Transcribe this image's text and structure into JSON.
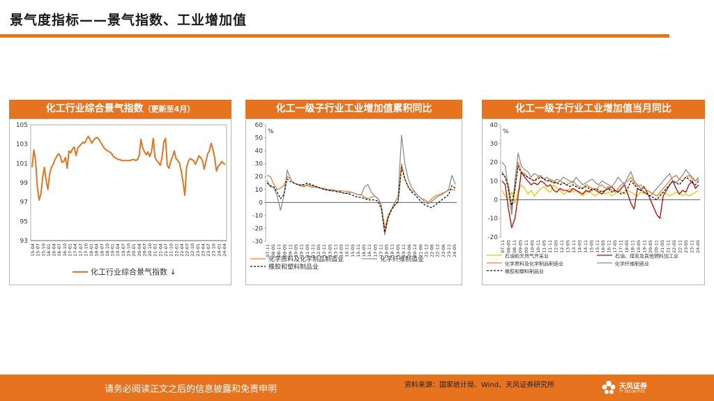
{
  "page": {
    "title": "景气度指标——景气指数、工业增加值",
    "footer_note": "请务必阅读正文之后的信息披露和免责申明",
    "source": "资料来源：国家统计局、Wind、天风证券研究所",
    "logo_text": "天风证券",
    "logo_sub": "TF SECURITIES",
    "accent_color": "#e8731f"
  },
  "chart_data": [
    {
      "type": "line",
      "title": "化工行业综合景气指数",
      "title_note": "（更新至4月）",
      "ylim": [
        93,
        105
      ],
      "yticks": [
        "105",
        "103",
        "101",
        "99",
        "97",
        "95",
        "93"
      ],
      "xticks": [
        "15-04",
        "15-07",
        "15-10",
        "16-01",
        "16-04",
        "16-07",
        "16-10",
        "17-01",
        "17-04",
        "17-07",
        "17-10",
        "18-01",
        "18-04",
        "18-07",
        "18-10",
        "19-01",
        "19-04",
        "19-07",
        "19-10",
        "20-01",
        "20-04",
        "20-07",
        "20-10",
        "21-01",
        "21-04",
        "21-07",
        "21-10",
        "22-01",
        "22-04",
        "22-07",
        "22-10",
        "23-01",
        "23-04",
        "23-07",
        "23-10",
        "24-01",
        "24-04"
      ],
      "series": [
        {
          "name": "化工行业综合景气指数",
          "legend_suffix": "↓",
          "color": "#e8731f",
          "values": [
            100.6,
            102.4,
            101.3,
            98.5,
            97.2,
            97.8,
            99.5,
            100.6,
            99.3,
            98.3,
            99.9,
            100.6,
            100.9,
            101.4,
            101.7,
            102.0,
            101.8,
            101.1,
            101.2,
            101.6,
            100.5,
            102.3,
            102.1,
            102.5,
            102.7,
            101.8,
            102.6,
            102.8,
            103.0,
            103.2,
            103.1,
            103.5,
            103.8,
            103.5,
            103.1,
            103.4,
            103.6,
            103.7,
            103.5,
            103.2,
            102.9,
            102.6,
            102.4,
            102.3,
            102.2,
            102.1,
            101.8,
            101.6,
            101.5,
            101.4,
            101.4,
            101.3,
            101.3,
            101.3,
            101.3,
            101.3,
            101.3,
            101.4,
            101.4,
            101.3,
            101.4,
            101.8,
            103.5,
            102.6,
            102.2,
            101.9,
            102.2,
            101.7,
            102.2,
            103.6,
            101.6,
            101.3,
            101.1,
            100.8,
            101.6,
            103.2,
            103.6,
            100.8,
            100.5,
            101.2,
            101.7,
            102.3,
            101.5,
            101.3,
            101.0,
            100.2,
            99.0,
            97.7,
            100.6,
            101.2,
            101.5,
            101.4,
            101.3,
            100.9,
            101.3,
            101.8,
            101.6,
            101.3,
            100.4,
            101.2,
            102.0,
            102.3,
            103.1,
            102.4,
            101.6,
            100.2,
            100.7,
            100.9,
            101.2,
            101.0,
            100.9
          ]
        }
      ]
    },
    {
      "type": "line",
      "title": "化工一级子行业工业增加值累积同比",
      "yunit": "%",
      "ylim": [
        -30,
        60
      ],
      "yticks": [
        "60",
        "50",
        "40",
        "30",
        "20",
        "10",
        "0",
        "-10",
        "-20",
        "-30"
      ],
      "xticks": [
        "07-11",
        "08-05",
        "08-11",
        "09-05",
        "09-11",
        "10-05",
        "10-11",
        "11-05",
        "11-11",
        "12-05",
        "12-11",
        "13-05",
        "13-11",
        "14-05",
        "14-11",
        "15-05",
        "15-11",
        "16-05",
        "16-11",
        "17-05",
        "17-11",
        "18-05",
        "18-11",
        "19-05",
        "19-11",
        "20-06",
        "20-12",
        "21-06",
        "21-12",
        "22-06",
        "22-12",
        "23-06",
        "23-11",
        "24-05"
      ],
      "series": [
        {
          "name": "化学原料及化学制品制造业",
          "color": "#f07f2a",
          "values": [
            21.0,
            20.0,
            14.0,
            10.0,
            11.0,
            13.0,
            20.0,
            18.0,
            15.0,
            14.0,
            13.0,
            12.0,
            14.0,
            13.0,
            12.5,
            12.0,
            11.0,
            11.0,
            10.0,
            10.0,
            9.5,
            9.0,
            9.0,
            8.8,
            8.5,
            8.0,
            7.0,
            6.0,
            6.0,
            4.0,
            3.0,
            4.0,
            5.0,
            3.0,
            -2.0,
            -20.0,
            -10.0,
            -5.0,
            -2.0,
            0.0,
            30.0,
            18.0,
            12.0,
            9.0,
            8.0,
            5.0,
            3.0,
            2.0,
            0.0,
            3.0,
            5.0,
            6.0,
            7.0,
            8.0,
            9.5,
            10.0,
            9.6
          ]
        },
        {
          "name": "化学纤维制造业",
          "color": "#8c8c8c",
          "values": [
            17.0,
            12.0,
            12.0,
            5.0,
            -6.0,
            5.0,
            25.0,
            18.0,
            15.0,
            14.0,
            14.0,
            13.0,
            13.0,
            12.0,
            12.0,
            11.5,
            11.0,
            10.0,
            10.0,
            9.0,
            9.0,
            9.0,
            8.0,
            7.0,
            7.0,
            8.0,
            7.0,
            6.0,
            6.0,
            12.0,
            14.0,
            8.0,
            5.0,
            3.0,
            -3.0,
            -25.0,
            -12.0,
            -5.0,
            0.0,
            5.0,
            52.0,
            30.0,
            18.0,
            12.0,
            8.0,
            5.0,
            3.0,
            0.0,
            -1.0,
            1.0,
            3.0,
            5.0,
            6.0,
            8.0,
            10.0,
            21.0,
            14.0
          ]
        },
        {
          "name": "橡胶和塑料制品业",
          "color": "#111111",
          "dashed": true,
          "values": [
            15.0,
            13.0,
            12.0,
            8.0,
            3.0,
            6.0,
            18.0,
            16.0,
            15.0,
            14.0,
            13.0,
            14.0,
            15.0,
            14.0,
            13.0,
            12.0,
            11.0,
            10.0,
            9.5,
            9.0,
            9.0,
            8.0,
            8.0,
            7.0,
            7.0,
            6.0,
            5.0,
            4.0,
            4.0,
            3.0,
            2.0,
            2.0,
            2.0,
            1.0,
            -5.0,
            -23.0,
            -12.0,
            -6.0,
            -2.0,
            1.0,
            27.0,
            18.0,
            12.0,
            8.0,
            6.0,
            3.0,
            0.0,
            -2.0,
            -3.0,
            -4.0,
            -2.0,
            0.0,
            2.0,
            4.0,
            6.0,
            13.0,
            11.0
          ]
        }
      ]
    },
    {
      "type": "line",
      "title": "化工一级子行业工业增加值当月同比",
      "yunit": "%",
      "ylim": [
        -20,
        40
      ],
      "yticks": [
        "40",
        "30",
        "20",
        "10",
        "0",
        "-10",
        "-20"
      ],
      "xticks": [
        "07-11",
        "08-05",
        "08-11",
        "09-05",
        "09-11",
        "10-05",
        "10-11",
        "11-05",
        "11-11",
        "12-05",
        "12-11",
        "13-05",
        "13-11",
        "14-05",
        "14-11",
        "15-05",
        "15-11",
        "16-05",
        "16-11",
        "17-05",
        "17-11",
        "18-05",
        "18-11",
        "19-05",
        "19-11",
        "20-05",
        "20-11",
        "21-05",
        "21-11",
        "22-05",
        "22-11",
        "23-05",
        "23-11",
        "24-05"
      ],
      "series": [
        {
          "name": "石油和天然气开采业",
          "color": "#f5c400",
          "values": [
            5.0,
            2.0,
            0.0,
            4.0,
            -2.0,
            5.0,
            8.0,
            6.0,
            3.0,
            5.0,
            2.0,
            4.0,
            6.0,
            7.0,
            5.0,
            4.0,
            8.0,
            6.0,
            5.0,
            3.0,
            4.0,
            6.0,
            4.0,
            5.0,
            3.0,
            2.0,
            4.0,
            5.0,
            3.0,
            2.0,
            4.0,
            5.0,
            3.0,
            4.0,
            2.0,
            3.0,
            5.0,
            4.0,
            3.0,
            5.0,
            4.0,
            3.0,
            2.0,
            4.0,
            3.0,
            5.0,
            4.0,
            3.0,
            2.0,
            3.0,
            4.0,
            3.0,
            2.0,
            3.0,
            4.0,
            3.0,
            2.0,
            3.0,
            2.0,
            3.0,
            4.0,
            5.0
          ]
        },
        {
          "name": "石油、煤炭及其他燃料加工业",
          "color": "#c00000",
          "values": [
            10.0,
            8.0,
            -5.0,
            -15.0,
            -10.0,
            2.0,
            15.0,
            12.0,
            10.0,
            8.0,
            9.0,
            8.0,
            10.0,
            9.0,
            7.0,
            8.0,
            5.0,
            4.0,
            6.0,
            5.0,
            5.0,
            4.0,
            6.0,
            5.0,
            4.0,
            3.0,
            5.0,
            4.0,
            6.0,
            5.0,
            4.0,
            3.0,
            5.0,
            6.0,
            7.0,
            5.0,
            4.0,
            6.0,
            8.0,
            3.0,
            -2.0,
            -5.0,
            6.0,
            5.0,
            7.0,
            4.0,
            0.0,
            -4.0,
            -8.0,
            -10.0,
            2.0,
            5.0,
            8.0,
            10.0,
            6.0,
            3.0,
            5.0,
            4.0,
            8.0,
            10.0,
            6.0,
            8.0
          ]
        },
        {
          "name": "化学原料及化学制品制造业",
          "color": "#f07f2a",
          "values": [
            15.0,
            12.0,
            8.0,
            -5.0,
            5.0,
            20.0,
            15.0,
            14.0,
            12.0,
            11.0,
            10.0,
            12.0,
            13.0,
            11.0,
            10.0,
            11.0,
            10.0,
            9.0,
            10.0,
            9.0,
            8.0,
            9.0,
            10.0,
            8.0,
            7.0,
            6.0,
            8.0,
            7.0,
            6.0,
            5.0,
            7.0,
            8.0,
            6.0,
            7.0,
            5.0,
            4.0,
            6.0,
            8.0,
            9.0,
            10.0,
            12.0,
            9.0,
            7.0,
            8.0,
            6.0,
            5.0,
            4.0,
            3.0,
            2.0,
            4.0,
            6.0,
            8.0,
            10.0,
            12.0,
            13.0,
            11.0,
            10.0,
            12.0,
            13.0,
            11.0,
            10.0,
            12.0
          ]
        },
        {
          "name": "化学纤维制造业",
          "color": "#8c8c8c",
          "values": [
            20.0,
            18.0,
            5.0,
            -8.0,
            10.0,
            25.0,
            18.0,
            16.0,
            15.0,
            12.0,
            14.0,
            13.0,
            12.0,
            11.0,
            12.0,
            10.0,
            9.0,
            11.0,
            10.0,
            12.0,
            11.0,
            10.0,
            9.0,
            12.0,
            10.0,
            8.0,
            9.0,
            10.0,
            11.0,
            9.0,
            8.0,
            10.0,
            9.0,
            8.0,
            7.0,
            9.0,
            12.0,
            10.0,
            8.0,
            12.0,
            15.0,
            10.0,
            8.0,
            6.0,
            4.0,
            3.0,
            2.0,
            4.0,
            6.0,
            8.0,
            10.0,
            12.0,
            14.0,
            10.0,
            9.0,
            11.0,
            13.0,
            16.0,
            14.0,
            12.0,
            10.0,
            11.0
          ]
        },
        {
          "name": "橡胶和塑料制品业",
          "color": "#111111",
          "dashed": true,
          "values": [
            14.0,
            12.0,
            6.0,
            -3.0,
            6.0,
            18.0,
            14.0,
            13.0,
            12.0,
            11.0,
            10.0,
            11.0,
            12.0,
            11.0,
            10.0,
            10.0,
            9.0,
            9.0,
            8.0,
            9.0,
            8.0,
            7.0,
            8.0,
            7.0,
            6.0,
            6.0,
            7.0,
            6.0,
            5.0,
            6.0,
            5.0,
            4.0,
            5.0,
            6.0,
            4.0,
            5.0,
            4.0,
            3.0,
            4.0,
            6.0,
            10.0,
            8.0,
            6.0,
            5.0,
            4.0,
            3.0,
            2.0,
            1.0,
            0.0,
            2.0,
            4.0,
            6.0,
            8.0,
            10.0,
            9.0,
            8.0,
            10.0,
            12.0,
            11.0,
            9.0,
            8.0,
            10.0
          ]
        }
      ]
    }
  ]
}
